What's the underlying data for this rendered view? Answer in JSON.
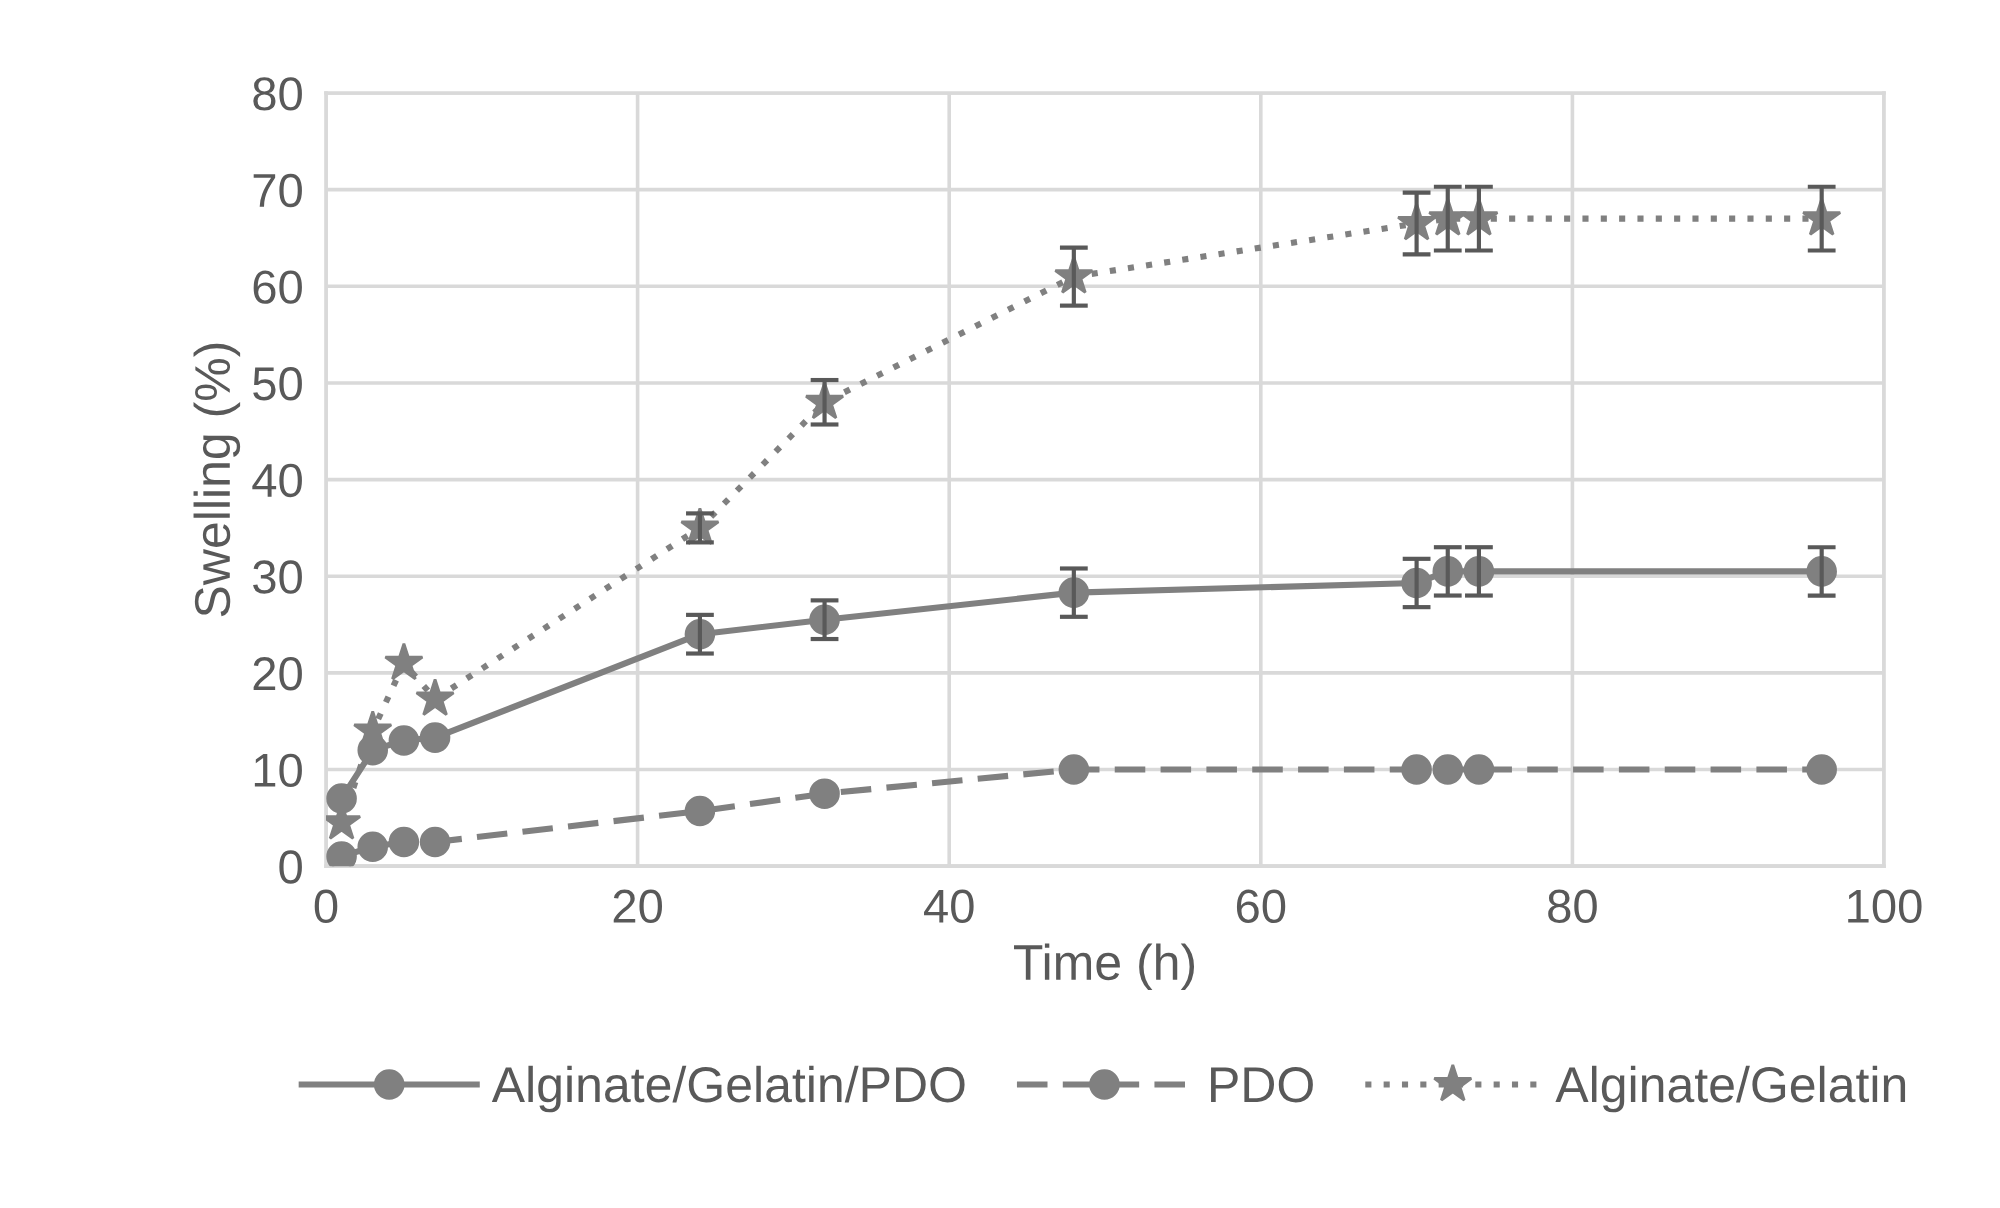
{
  "chart_data": {
    "type": "line",
    "xlabel": "Time (h)",
    "ylabel": "Swelling (%)",
    "xlim": [
      0,
      100
    ],
    "xticks": [
      0,
      20,
      40,
      60,
      80,
      100
    ],
    "ylim": [
      0,
      80
    ],
    "yticks": [
      0,
      10,
      20,
      30,
      40,
      50,
      60,
      70,
      80
    ],
    "grid": true,
    "legend": "bottom",
    "x": [
      1,
      3,
      5,
      7,
      24,
      32,
      48,
      70,
      72,
      74,
      96
    ],
    "series": [
      {
        "name": "Alginate/Gelatin/PDO",
        "color": "#808080",
        "marker": "circle",
        "line_style": "solid",
        "values": [
          7,
          12,
          13,
          13.3,
          24,
          25.5,
          28.3,
          29.3,
          30.5,
          30.5,
          30.5
        ],
        "errors": [
          null,
          null,
          null,
          null,
          2,
          2,
          2.5,
          2.5,
          2.5,
          2.5,
          2.5
        ]
      },
      {
        "name": "PDO",
        "color": "#808080",
        "marker": "circle",
        "line_style": "dashed",
        "values": [
          1,
          2,
          2.5,
          2.5,
          5.7,
          7.5,
          10,
          10,
          10,
          10,
          10
        ]
      },
      {
        "name": "Alginate/Gelatin",
        "color": "#808080",
        "marker": "star",
        "line_style": "dotted",
        "values": [
          4.5,
          14,
          21,
          17.3,
          35,
          48,
          61,
          66.5,
          67,
          67,
          67
        ],
        "errors": [
          null,
          null,
          null,
          null,
          1.5,
          2.3,
          3,
          3.2,
          3.3,
          3.3,
          3.3
        ]
      }
    ]
  }
}
